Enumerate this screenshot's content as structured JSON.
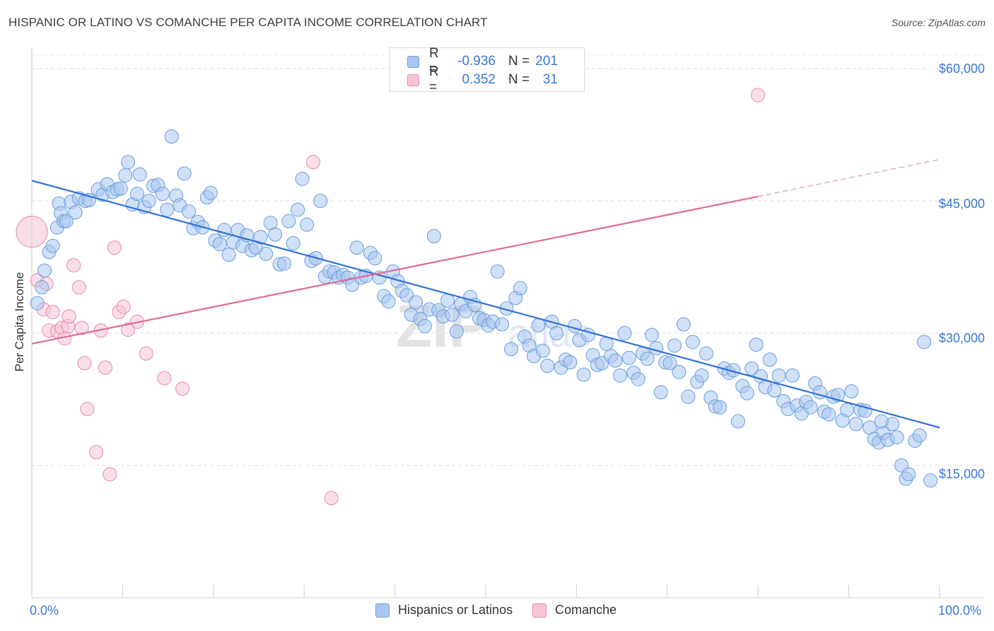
{
  "title": "HISPANIC OR LATINO VS COMANCHE PER CAPITA INCOME CORRELATION CHART",
  "source": "Source: ZipAtlas.com",
  "watermark": "ZIPatlas",
  "legend_top": [
    {
      "r_label": "R =",
      "r_value": "-0.936",
      "n_label": "N =",
      "n_value": "201",
      "color": "#a9c7f0",
      "border": "#6a9ee0"
    },
    {
      "r_label": "R =",
      "r_value": "0.352",
      "n_label": "N =",
      "n_value": "31",
      "color": "#f8c4d4",
      "border": "#e58aa6"
    }
  ],
  "legend_bottom": [
    {
      "label": "Hispanics or Latinos",
      "color": "#a9c7f0",
      "border": "#6a9ee0"
    },
    {
      "label": "Comanche",
      "color": "#f8c4d4",
      "border": "#e58aa6"
    }
  ],
  "axes": {
    "y_title": "Per Capita Income",
    "y_ticks": [
      "$60,000",
      "$45,000",
      "$30,000",
      "$15,000"
    ],
    "x_min_label": "0.0%",
    "x_max_label": "100.0%"
  },
  "chart_data": {
    "type": "scatter",
    "title": "HISPANIC OR LATINO VS COMANCHE PER CAPITA INCOME CORRELATION CHART",
    "xlabel": "",
    "ylabel": "Per Capita Income",
    "xlim": [
      0,
      100
    ],
    "ylim": [
      0,
      63000
    ],
    "y_gridlines": [
      15000,
      30000,
      45000,
      60000
    ],
    "legend_placement": "top-center",
    "series": [
      {
        "name": "Hispanics or Latinos",
        "color": "#6a9ee0",
        "trend": {
          "x0": 0,
          "y0": 47300,
          "x1": 100,
          "y1": 19300
        },
        "points": [
          [
            0.6,
            33400
          ],
          [
            1.1,
            35200
          ],
          [
            1.4,
            37100
          ],
          [
            1.9,
            39200
          ],
          [
            2.3,
            39900
          ],
          [
            2.8,
            42000
          ],
          [
            3.0,
            44700
          ],
          [
            3.2,
            43600
          ],
          [
            3.5,
            42700
          ],
          [
            3.8,
            42700
          ],
          [
            4.3,
            44900
          ],
          [
            4.8,
            43700
          ],
          [
            5.2,
            45300
          ],
          [
            5.9,
            45000
          ],
          [
            6.3,
            45100
          ],
          [
            7.3,
            46300
          ],
          [
            7.8,
            45700
          ],
          [
            8.3,
            46900
          ],
          [
            8.9,
            46000
          ],
          [
            9.4,
            46300
          ],
          [
            9.8,
            46400
          ],
          [
            10.3,
            47900
          ],
          [
            10.6,
            49400
          ],
          [
            11.1,
            44600
          ],
          [
            11.6,
            45800
          ],
          [
            11.9,
            48000
          ],
          [
            12.4,
            44300
          ],
          [
            12.9,
            45000
          ],
          [
            13.4,
            46700
          ],
          [
            13.9,
            46800
          ],
          [
            14.4,
            45800
          ],
          [
            14.9,
            44000
          ],
          [
            15.4,
            52300
          ],
          [
            15.9,
            45600
          ],
          [
            16.3,
            44500
          ],
          [
            16.8,
            48100
          ],
          [
            17.3,
            43800
          ],
          [
            17.8,
            41900
          ],
          [
            18.3,
            42600
          ],
          [
            18.8,
            42000
          ],
          [
            19.3,
            45400
          ],
          [
            19.7,
            45900
          ],
          [
            20.2,
            40500
          ],
          [
            20.7,
            40100
          ],
          [
            21.2,
            41700
          ],
          [
            21.7,
            38900
          ],
          [
            22.2,
            40300
          ],
          [
            22.7,
            41700
          ],
          [
            23.2,
            39900
          ],
          [
            23.7,
            41100
          ],
          [
            24.2,
            39400
          ],
          [
            24.7,
            39700
          ],
          [
            25.2,
            40900
          ],
          [
            25.8,
            39000
          ],
          [
            26.3,
            42500
          ],
          [
            26.8,
            41200
          ],
          [
            27.3,
            37800
          ],
          [
            27.8,
            37900
          ],
          [
            28.3,
            42700
          ],
          [
            28.8,
            40200
          ],
          [
            29.3,
            44000
          ],
          [
            29.8,
            47500
          ],
          [
            30.3,
            42300
          ],
          [
            30.8,
            38200
          ],
          [
            31.3,
            38500
          ],
          [
            31.8,
            45000
          ],
          [
            32.3,
            36400
          ],
          [
            32.8,
            37000
          ],
          [
            33.3,
            36900
          ],
          [
            33.8,
            36300
          ],
          [
            34.3,
            36600
          ],
          [
            34.8,
            36300
          ],
          [
            35.3,
            35500
          ],
          [
            35.8,
            39700
          ],
          [
            36.3,
            36300
          ],
          [
            36.8,
            36500
          ],
          [
            37.3,
            39100
          ],
          [
            37.8,
            38500
          ],
          [
            38.3,
            36300
          ],
          [
            38.8,
            34200
          ],
          [
            39.3,
            33600
          ],
          [
            39.8,
            37000
          ],
          [
            40.3,
            35900
          ],
          [
            40.8,
            34800
          ],
          [
            41.3,
            34300
          ],
          [
            41.8,
            32100
          ],
          [
            42.3,
            33500
          ],
          [
            42.8,
            31600
          ],
          [
            43.3,
            30800
          ],
          [
            43.8,
            32700
          ],
          [
            44.3,
            41000
          ],
          [
            44.8,
            32600
          ],
          [
            45.3,
            31900
          ],
          [
            45.8,
            33700
          ],
          [
            46.3,
            32100
          ],
          [
            46.8,
            30200
          ],
          [
            47.3,
            33300
          ],
          [
            47.8,
            32500
          ],
          [
            48.3,
            34100
          ],
          [
            48.8,
            33200
          ],
          [
            49.3,
            31700
          ],
          [
            49.8,
            31500
          ],
          [
            50.3,
            30900
          ],
          [
            50.8,
            31300
          ],
          [
            51.3,
            37000
          ],
          [
            51.8,
            31000
          ],
          [
            52.3,
            32800
          ],
          [
            52.8,
            28200
          ],
          [
            53.3,
            34000
          ],
          [
            53.8,
            35100
          ],
          [
            54.3,
            29600
          ],
          [
            54.8,
            28600
          ],
          [
            55.3,
            27400
          ],
          [
            55.8,
            30900
          ],
          [
            56.3,
            28000
          ],
          [
            56.8,
            26300
          ],
          [
            57.3,
            31300
          ],
          [
            57.8,
            30000
          ],
          [
            58.3,
            26100
          ],
          [
            58.8,
            27000
          ],
          [
            59.3,
            26700
          ],
          [
            59.8,
            30800
          ],
          [
            60.3,
            29200
          ],
          [
            60.8,
            25300
          ],
          [
            61.3,
            29800
          ],
          [
            61.8,
            27500
          ],
          [
            62.3,
            26400
          ],
          [
            62.8,
            26600
          ],
          [
            63.3,
            28800
          ],
          [
            63.8,
            27400
          ],
          [
            64.3,
            26900
          ],
          [
            64.8,
            25200
          ],
          [
            65.3,
            30000
          ],
          [
            65.8,
            27200
          ],
          [
            66.3,
            25500
          ],
          [
            66.8,
            24800
          ],
          [
            67.3,
            27700
          ],
          [
            67.8,
            27100
          ],
          [
            68.3,
            29800
          ],
          [
            68.8,
            28300
          ],
          [
            69.3,
            23300
          ],
          [
            69.8,
            26700
          ],
          [
            70.3,
            26600
          ],
          [
            70.8,
            28600
          ],
          [
            71.3,
            25600
          ],
          [
            71.8,
            31000
          ],
          [
            72.3,
            22800
          ],
          [
            72.8,
            29000
          ],
          [
            73.3,
            24500
          ],
          [
            73.8,
            25200
          ],
          [
            74.3,
            27700
          ],
          [
            74.8,
            22700
          ],
          [
            75.3,
            21700
          ],
          [
            75.8,
            21600
          ],
          [
            76.3,
            26000
          ],
          [
            76.8,
            25500
          ],
          [
            77.3,
            25800
          ],
          [
            77.8,
            20000
          ],
          [
            78.3,
            24000
          ],
          [
            78.8,
            23200
          ],
          [
            79.3,
            26000
          ],
          [
            79.8,
            28700
          ],
          [
            80.3,
            25100
          ],
          [
            80.8,
            23900
          ],
          [
            81.3,
            27000
          ],
          [
            81.8,
            23500
          ],
          [
            82.3,
            25200
          ],
          [
            82.8,
            22300
          ],
          [
            83.3,
            21400
          ],
          [
            83.8,
            25200
          ],
          [
            84.3,
            21800
          ],
          [
            84.8,
            20900
          ],
          [
            85.3,
            22200
          ],
          [
            85.8,
            21600
          ],
          [
            86.3,
            24300
          ],
          [
            86.8,
            23300
          ],
          [
            87.3,
            21100
          ],
          [
            87.8,
            20800
          ],
          [
            88.3,
            22800
          ],
          [
            88.8,
            23000
          ],
          [
            89.3,
            20100
          ],
          [
            89.8,
            21300
          ],
          [
            90.3,
            23400
          ],
          [
            90.8,
            19700
          ],
          [
            91.3,
            21300
          ],
          [
            91.8,
            21200
          ],
          [
            92.3,
            19300
          ],
          [
            92.8,
            18000
          ],
          [
            93.3,
            17600
          ],
          [
            93.8,
            18700
          ],
          [
            94.3,
            17900
          ],
          [
            94.8,
            19700
          ],
          [
            95.3,
            18200
          ],
          [
            95.8,
            15000
          ],
          [
            96.3,
            13500
          ],
          [
            97.3,
            17800
          ],
          [
            98.3,
            29000
          ],
          [
            96.6,
            14000
          ],
          [
            97.8,
            18400
          ],
          [
            93.6,
            20000
          ],
          [
            99.0,
            13300
          ]
        ]
      },
      {
        "name": "Comanche",
        "color": "#e58aa6",
        "trend": {
          "x0": 0,
          "y0": 28800,
          "x1": 80,
          "y1": 45500,
          "dash_to_x": 100,
          "dash_to_y": 49700
        },
        "points": [
          [
            0.0,
            41500
          ],
          [
            0.6,
            36000
          ],
          [
            1.3,
            32700
          ],
          [
            1.6,
            35600
          ],
          [
            1.9,
            30300
          ],
          [
            2.3,
            32400
          ],
          [
            2.8,
            30200
          ],
          [
            3.3,
            30600
          ],
          [
            3.6,
            29400
          ],
          [
            4.0,
            30800
          ],
          [
            4.1,
            31900
          ],
          [
            4.6,
            37700
          ],
          [
            5.2,
            35200
          ],
          [
            5.5,
            30600
          ],
          [
            5.8,
            26600
          ],
          [
            6.1,
            21400
          ],
          [
            7.1,
            16500
          ],
          [
            7.6,
            30300
          ],
          [
            8.1,
            26100
          ],
          [
            8.6,
            14000
          ],
          [
            9.1,
            39700
          ],
          [
            9.6,
            32400
          ],
          [
            10.1,
            33000
          ],
          [
            10.6,
            30400
          ],
          [
            11.6,
            31300
          ],
          [
            12.6,
            27700
          ],
          [
            14.6,
            24900
          ],
          [
            16.6,
            23700
          ],
          [
            31.0,
            49400
          ],
          [
            33.0,
            11300
          ],
          [
            80.0,
            57000
          ]
        ]
      }
    ]
  }
}
